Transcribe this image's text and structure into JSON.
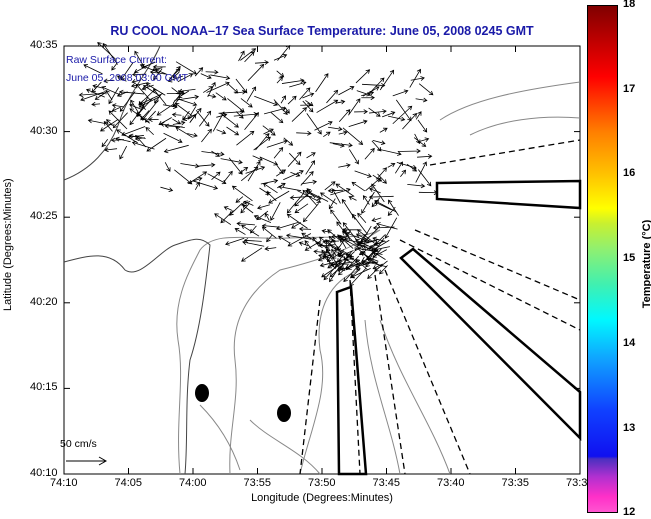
{
  "title": "RU COOL  NOAA–17  Sea Surface Temperature:  June 05, 2008 0245 GMT",
  "legend": {
    "line1": "Raw Surface Current:",
    "line2": "June 05, 2008 03:00 GMT",
    "scale_label": "50 cm/s"
  },
  "axes": {
    "xlabel": "Longitude (Degrees:Minutes)",
    "ylabel": "Latitude (Degrees:Minutes)",
    "xticks": [
      "74:10",
      "74:05",
      "74:00",
      "73:55",
      "73:50",
      "73:45",
      "73:40",
      "73:35",
      "73:3"
    ],
    "yticks": [
      "40:35",
      "40:30",
      "40:25",
      "40:20",
      "40:15",
      "40:10"
    ]
  },
  "colorbar": {
    "label": "Temperature (°C)",
    "ticks": [
      "18",
      "17",
      "16",
      "15",
      "14",
      "13",
      "12"
    ],
    "range": [
      12,
      18
    ]
  }
}
